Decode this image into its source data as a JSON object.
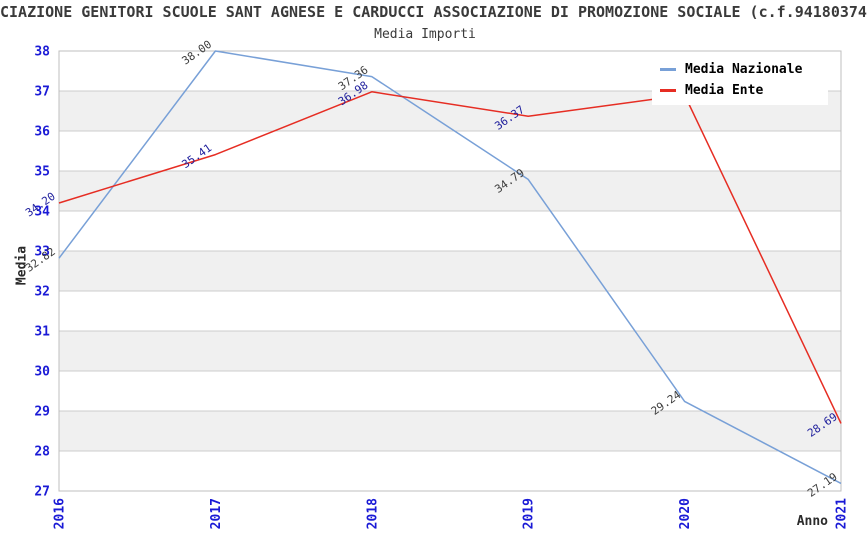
{
  "chart_data": {
    "type": "line",
    "title": "CIAZIONE GENITORI SCUOLE SANT AGNESE E CARDUCCI ASSOCIAZIONE DI PROMOZIONE SOCIALE (c.f.94180374",
    "subtitle": "Media Importi",
    "xlabel": "Anno",
    "ylabel": "Media",
    "categories": [
      "2016",
      "2017",
      "2018",
      "2019",
      "2020",
      "2021"
    ],
    "ylim": [
      27,
      38
    ],
    "yticks": [
      27,
      28,
      29,
      30,
      31,
      32,
      33,
      34,
      35,
      36,
      37,
      38
    ],
    "grid": "horizontal-only",
    "legend_position": "top-right-inside",
    "series": [
      {
        "name": "Media Nazionale",
        "color": "#78a0d7",
        "label_color": "#3d3d3d",
        "values": [
          32.82,
          38.0,
          37.36,
          34.79,
          29.24,
          27.19
        ],
        "labels": [
          "32.82",
          "38.00",
          "37.36",
          "34.79",
          "29.24",
          "27.19"
        ]
      },
      {
        "name": "Media Ente",
        "color": "#e62d23",
        "label_color": "#1e1e9c",
        "values": [
          34.2,
          35.41,
          36.98,
          36.37,
          36.9,
          28.69
        ],
        "labels": [
          "34.20",
          "35.41",
          "36.98",
          "36.37",
          null,
          "28.69"
        ]
      }
    ],
    "style": {
      "band_gray": "#f0f0f0",
      "band_white": "#ffffff",
      "grid_color": "#cccccc",
      "border_color": "#bfbfbf",
      "tick_label_color": "#1a1ad6",
      "title_color": "#3a3a3a"
    }
  }
}
